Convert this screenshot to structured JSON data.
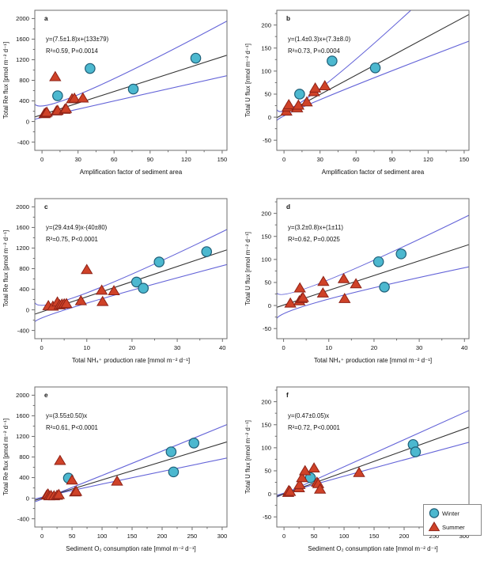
{
  "colors": {
    "winter_fill": "#4cb8cf",
    "winter_stroke": "#1f5f78",
    "summer_fill": "#cf4228",
    "summer_stroke": "#8e2217",
    "ci_line": "#6464d8",
    "fit_line": "#333333",
    "axis": "#6e6e6e",
    "legend_border": "#888888",
    "text": "#111111"
  },
  "legend": {
    "winter_label": "Winter",
    "summer_label": "Summer"
  },
  "chart_data": [
    {
      "type": "scatter",
      "panel_label": "a",
      "equation": [
        "y=(7.5±1.8)x+(133±79)",
        "R²=0.59, P=0.0014"
      ],
      "xlabel": "Amplification factor of sediment area",
      "ylabel": "Total Re flux [pmol m⁻² d⁻¹]",
      "xlim": [
        -6,
        154
      ],
      "ylim": [
        -560,
        2160
      ],
      "xticks": [
        0,
        30,
        60,
        90,
        120,
        150
      ],
      "yticks": [
        -400,
        0,
        400,
        800,
        1200,
        1600,
        2000
      ],
      "series": [
        {
          "name": "Winter",
          "marker": "circle",
          "points": [
            [
              13,
              500
            ],
            [
              40,
              1030
            ],
            [
              76,
              630
            ],
            [
              128,
              1230
            ]
          ]
        },
        {
          "name": "Summer",
          "marker": "triangle",
          "points": [
            [
              2,
              150
            ],
            [
              3,
              165
            ],
            [
              4,
              180
            ],
            [
              11,
              870
            ],
            [
              12,
              205
            ],
            [
              13,
              215
            ],
            [
              19,
              235
            ],
            [
              20,
              250
            ],
            [
              25,
              440
            ],
            [
              27,
              450
            ],
            [
              34,
              455
            ]
          ]
        }
      ],
      "fit": {
        "slope": 7.5,
        "intercept": 133
      },
      "ci_upper": [
        [
          -6,
          420
        ],
        [
          30,
          520
        ],
        [
          154,
          1950
        ]
      ],
      "ci_lower": [
        [
          -6,
          40
        ],
        [
          30,
          240
        ],
        [
          154,
          890
        ]
      ]
    },
    {
      "type": "scatter",
      "panel_label": "b",
      "equation": [
        "y=(1.4±0.3)x+(7.3±8.0)",
        "R²=0.73, P=0.0004"
      ],
      "xlabel": "Amplification factor of sediment area",
      "ylabel": "Total U flux [nmol m⁻² d⁻¹]",
      "xlim": [
        -6,
        154
      ],
      "ylim": [
        -72,
        232
      ],
      "xticks": [
        0,
        30,
        60,
        90,
        120,
        150
      ],
      "yticks": [
        -50,
        0,
        50,
        100,
        150,
        200
      ],
      "series": [
        {
          "name": "Winter",
          "marker": "circle",
          "points": [
            [
              13,
              50
            ],
            [
              40,
              122
            ],
            [
              76,
              107
            ]
          ]
        },
        {
          "name": "Summer",
          "marker": "triangle",
          "points": [
            [
              2,
              13
            ],
            [
              3,
              22
            ],
            [
              4,
              27
            ],
            [
              11,
              20
            ],
            [
              12,
              26
            ],
            [
              19,
              33
            ],
            [
              25,
              55
            ],
            [
              26,
              63
            ],
            [
              34,
              68
            ]
          ]
        }
      ],
      "fit": {
        "slope": 1.4,
        "intercept": 7.3
      },
      "ci_upper": [
        [
          -6,
          30
        ],
        [
          30,
          62
        ],
        [
          154,
          350
        ]
      ],
      "ci_lower": [
        [
          -6,
          -10
        ],
        [
          30,
          38
        ],
        [
          154,
          165
        ]
      ]
    },
    {
      "type": "scatter",
      "panel_label": "c",
      "equation": [
        "y=(29.4±4.9)x-(40±80)",
        "R²=0.75, P<0.0001"
      ],
      "xlabel": "Total NH₄⁺ production rate [mmol m⁻² d⁻¹]",
      "ylabel": "Total Re flux [pmol m⁻² d⁻¹]",
      "xlim": [
        -1.5,
        41
      ],
      "ylim": [
        -560,
        2160
      ],
      "xticks": [
        0,
        10,
        20,
        30,
        40
      ],
      "yticks": [
        -400,
        0,
        400,
        800,
        1200,
        1600,
        2000
      ],
      "series": [
        {
          "name": "Winter",
          "marker": "circle",
          "points": [
            [
              21,
              540
            ],
            [
              22.5,
              420
            ],
            [
              26,
              930
            ],
            [
              36.5,
              1130
            ]
          ]
        },
        {
          "name": "Summer",
          "marker": "triangle",
          "points": [
            [
              1.5,
              80
            ],
            [
              2.5,
              70
            ],
            [
              3.5,
              150
            ],
            [
              4,
              95
            ],
            [
              4.5,
              110
            ],
            [
              5,
              115
            ],
            [
              5.5,
              120
            ],
            [
              8.7,
              175
            ],
            [
              10,
              780
            ],
            [
              13.3,
              380
            ],
            [
              13.5,
              160
            ],
            [
              16,
              370
            ]
          ]
        }
      ],
      "fit": {
        "slope": 29.4,
        "intercept": -40
      },
      "ci_upper": [
        [
          -1.5,
          140
        ],
        [
          10,
          330
        ],
        [
          41,
          1560
        ]
      ],
      "ci_lower": [
        [
          -1.5,
          -230
        ],
        [
          10,
          130
        ],
        [
          41,
          880
        ]
      ]
    },
    {
      "type": "scatter",
      "panel_label": "d",
      "equation": [
        "y=(3.2±0.8)x+(1±11)",
        "R²=0.62, P=0.0025"
      ],
      "xlabel": "Total NH₄⁺ production rate [mmol m⁻² d⁻¹]",
      "ylabel": "Total U flux [nmol m⁻² d⁻¹]",
      "xlim": [
        -1.5,
        41
      ],
      "ylim": [
        -72,
        232
      ],
      "xticks": [
        0,
        10,
        20,
        30,
        40
      ],
      "yticks": [
        -50,
        0,
        50,
        100,
        150,
        200
      ],
      "series": [
        {
          "name": "Winter",
          "marker": "circle",
          "points": [
            [
              21,
              95
            ],
            [
              22.3,
              40
            ],
            [
              26,
              112
            ]
          ]
        },
        {
          "name": "Summer",
          "marker": "triangle",
          "points": [
            [
              1.5,
              5
            ],
            [
              3.5,
              10
            ],
            [
              3.6,
              38
            ],
            [
              4,
              15
            ],
            [
              4.3,
              17
            ],
            [
              8.7,
              27
            ],
            [
              8.8,
              52
            ],
            [
              13.3,
              58
            ],
            [
              13.5,
              15
            ],
            [
              16,
              47
            ]
          ]
        }
      ],
      "fit": {
        "slope": 3.2,
        "intercept": 1
      },
      "ci_upper": [
        [
          -1.5,
          27
        ],
        [
          10,
          56
        ],
        [
          41,
          196
        ]
      ],
      "ci_lower": [
        [
          -1.5,
          -28
        ],
        [
          10,
          14
        ],
        [
          41,
          84
        ]
      ]
    },
    {
      "type": "scatter",
      "panel_label": "e",
      "equation": [
        "y=(3.55±0.50)x",
        "R²=0.61, P<0.0001"
      ],
      "xlabel": "Sediment O₂ consumption rate [mmol m⁻² d⁻¹]",
      "ylabel": "Total Re flux [pmol m⁻² d⁻¹]",
      "xlim": [
        -12,
        308
      ],
      "ylim": [
        -560,
        2160
      ],
      "xticks": [
        0,
        50,
        100,
        150,
        200,
        250,
        300
      ],
      "yticks": [
        -400,
        0,
        400,
        800,
        1200,
        1600,
        2000
      ],
      "series": [
        {
          "name": "Winter",
          "marker": "circle",
          "points": [
            [
              44,
              390
            ],
            [
              215,
              900
            ],
            [
              219,
              510
            ],
            [
              253,
              1070
            ]
          ]
        },
        {
          "name": "Summer",
          "marker": "triangle",
          "points": [
            [
              8,
              60
            ],
            [
              10,
              80
            ],
            [
              12,
              45
            ],
            [
              15,
              50
            ],
            [
              20,
              45
            ],
            [
              25,
              55
            ],
            [
              28,
              70
            ],
            [
              30,
              730
            ],
            [
              50,
              350
            ],
            [
              55,
              120
            ],
            [
              57,
              130
            ],
            [
              125,
              330
            ]
          ]
        }
      ],
      "fit": {
        "slope": 3.55,
        "intercept": 0
      },
      "ci_upper": [
        [
          -12,
          -49
        ],
        [
          44,
          180
        ],
        [
          308,
          1430
        ]
      ],
      "ci_lower": [
        [
          -12,
          -38
        ],
        [
          44,
          134
        ],
        [
          308,
          780
        ]
      ]
    },
    {
      "type": "scatter",
      "panel_label": "f",
      "equation": [
        "y=(0.47±0.05)x",
        "R²=0.72, P<0.0001"
      ],
      "xlabel": "Sediment O₂ consumption rate [mmol m⁻² d⁻¹]",
      "ylabel": "Total U flux [nmol m⁻² d⁻¹]",
      "xlim": [
        -12,
        308
      ],
      "ylim": [
        -72,
        232
      ],
      "xticks": [
        0,
        50,
        100,
        150,
        200,
        250,
        300
      ],
      "yticks": [
        -50,
        0,
        50,
        100,
        150,
        200
      ],
      "series": [
        {
          "name": "Winter",
          "marker": "circle",
          "points": [
            [
              44,
              35
            ],
            [
              215,
              107
            ],
            [
              219,
              91
            ]
          ]
        },
        {
          "name": "Summer",
          "marker": "triangle",
          "points": [
            [
              7,
              3
            ],
            [
              8,
              7
            ],
            [
              10,
              5
            ],
            [
              25,
              13
            ],
            [
              26,
              20
            ],
            [
              30,
              35
            ],
            [
              35,
              50
            ],
            [
              50,
              56
            ],
            [
              55,
              25
            ],
            [
              57,
              22
            ],
            [
              60,
              10
            ],
            [
              125,
              46
            ]
          ]
        }
      ],
      "fit": {
        "slope": 0.47,
        "intercept": 0
      },
      "ci_upper": [
        [
          -12,
          -7
        ],
        [
          44,
          26
        ],
        [
          308,
          181
        ]
      ],
      "ci_lower": [
        [
          -12,
          -5
        ],
        [
          44,
          18
        ],
        [
          308,
          112
        ]
      ],
      "has_legend": true
    }
  ]
}
